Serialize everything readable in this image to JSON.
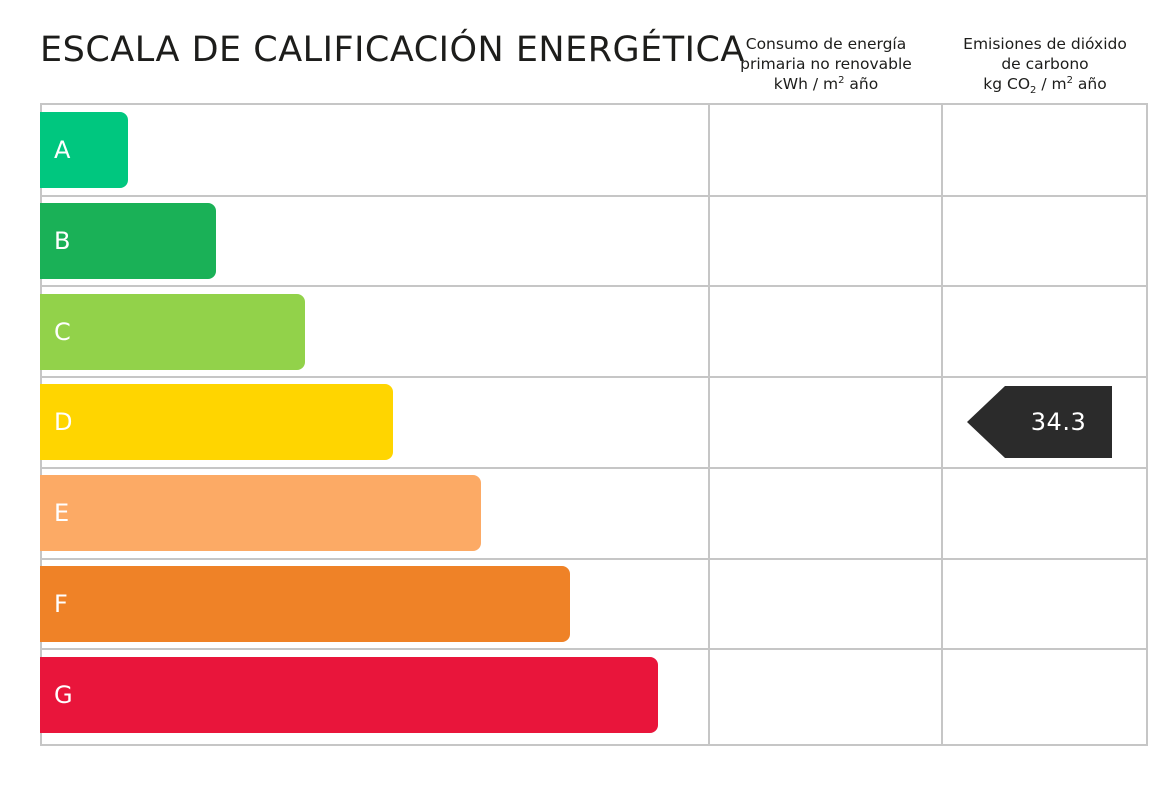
{
  "title": "ESCALA DE CALIFICACIÓN ENERGÉTICA",
  "columns": {
    "consumo": {
      "line1": "Consumo de energía",
      "line2": "primaria no renovable",
      "unit_prefix": "kWh / m",
      "unit_sup": "2",
      "unit_suffix": " año"
    },
    "emisiones": {
      "line1": "Emisiones de dióxido",
      "line2": "de carbono",
      "unit_prefix": "kg CO",
      "unit_sub": "2",
      "unit_mid": " / m",
      "unit_sup": "2",
      "unit_suffix": " año"
    }
  },
  "chart_data": {
    "type": "bar",
    "categories": [
      "A",
      "B",
      "C",
      "D",
      "E",
      "F",
      "G"
    ],
    "colors": [
      "#00c77f",
      "#1ab157",
      "#92d24a",
      "#ffd500",
      "#fcaa65",
      "#ef8227",
      "#e9153b"
    ],
    "consumo_rating": null,
    "emisiones_rating": {
      "class": "D",
      "value": "34.3"
    }
  }
}
